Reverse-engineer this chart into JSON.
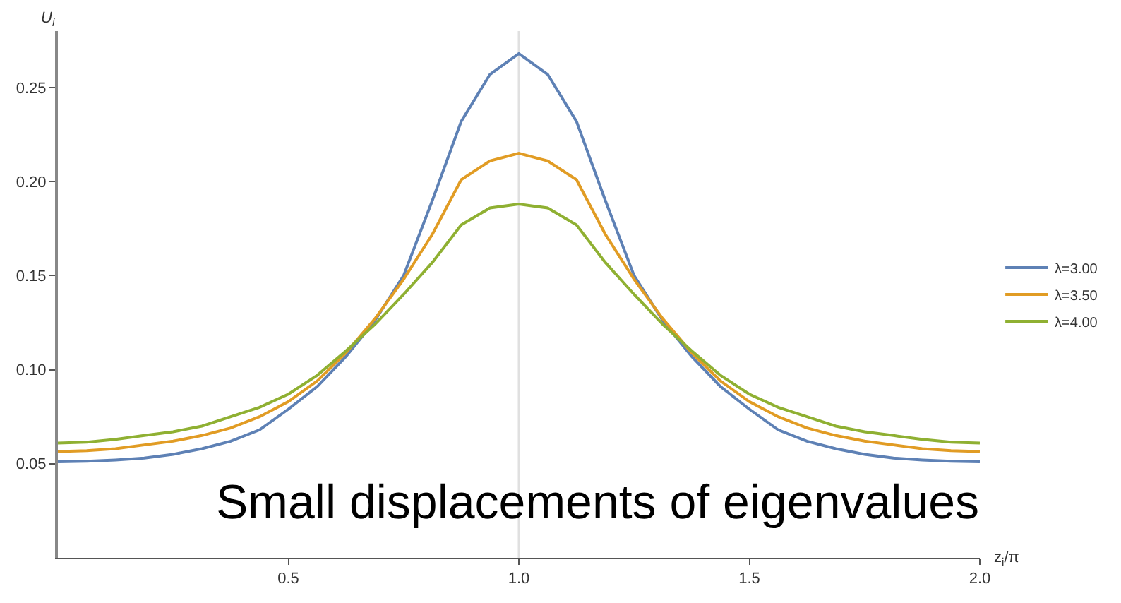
{
  "chart_data": {
    "type": "line",
    "xlabel": "z$_{i}$/π",
    "ylabel": "U$_{i}$",
    "x": [
      0,
      0.0625,
      0.125,
      0.1875,
      0.25,
      0.3125,
      0.375,
      0.4375,
      0.5,
      0.5625,
      0.625,
      0.6875,
      0.75,
      0.8125,
      0.875,
      0.9375,
      1.0,
      1.0625,
      1.125,
      1.1875,
      1.25,
      1.3125,
      1.375,
      1.4375,
      1.5,
      1.5625,
      1.625,
      1.6875,
      1.75,
      1.8125,
      1.875,
      1.9375,
      2.0
    ],
    "series": [
      {
        "name": "λ=3.00",
        "color": "#5e81b5",
        "values": [
          0.051,
          0.0513,
          0.052,
          0.053,
          0.055,
          0.058,
          0.062,
          0.068,
          0.079,
          0.091,
          0.107,
          0.126,
          0.15,
          0.19,
          0.232,
          0.257,
          0.268,
          0.257,
          0.232,
          0.19,
          0.15,
          0.126,
          0.107,
          0.091,
          0.079,
          0.068,
          0.062,
          0.058,
          0.055,
          0.053,
          0.052,
          0.0513,
          0.051
        ]
      },
      {
        "name": "λ=3.50",
        "color": "#e19c24",
        "values": [
          0.0565,
          0.057,
          0.058,
          0.06,
          0.062,
          0.065,
          0.069,
          0.075,
          0.083,
          0.094,
          0.109,
          0.127,
          0.148,
          0.172,
          0.201,
          0.211,
          0.215,
          0.211,
          0.201,
          0.172,
          0.148,
          0.127,
          0.109,
          0.094,
          0.083,
          0.075,
          0.069,
          0.065,
          0.062,
          0.06,
          0.058,
          0.057,
          0.0565
        ]
      },
      {
        "name": "λ=4.00",
        "color": "#8fb032",
        "values": [
          0.061,
          0.0615,
          0.063,
          0.065,
          0.067,
          0.07,
          0.075,
          0.08,
          0.087,
          0.097,
          0.11,
          0.124,
          0.14,
          0.157,
          0.177,
          0.186,
          0.188,
          0.186,
          0.177,
          0.157,
          0.14,
          0.124,
          0.11,
          0.097,
          0.087,
          0.08,
          0.075,
          0.07,
          0.067,
          0.065,
          0.063,
          0.0615,
          0.061
        ]
      }
    ],
    "xlim": [
      0,
      2.0
    ],
    "ylim": [
      0,
      0.28
    ],
    "xticks": [
      0.5,
      {
        "value": 1.0,
        "label": "1.0"
      },
      1.5,
      {
        "value": 2.0,
        "label": "2.0"
      }
    ],
    "yticks": [
      0.05,
      {
        "value": 0.1,
        "label": "0.10"
      },
      0.15,
      {
        "value": 0.2,
        "label": "0.20"
      },
      0.25
    ],
    "ref_lines": [
      {
        "axis": "x",
        "value": 1.0,
        "color": "#e0e0e0"
      }
    ],
    "annotations": [
      "Small displacements of eigenvalues"
    ],
    "legend": "right",
    "grid": false,
    "marker": "none",
    "line_style": "solid"
  }
}
